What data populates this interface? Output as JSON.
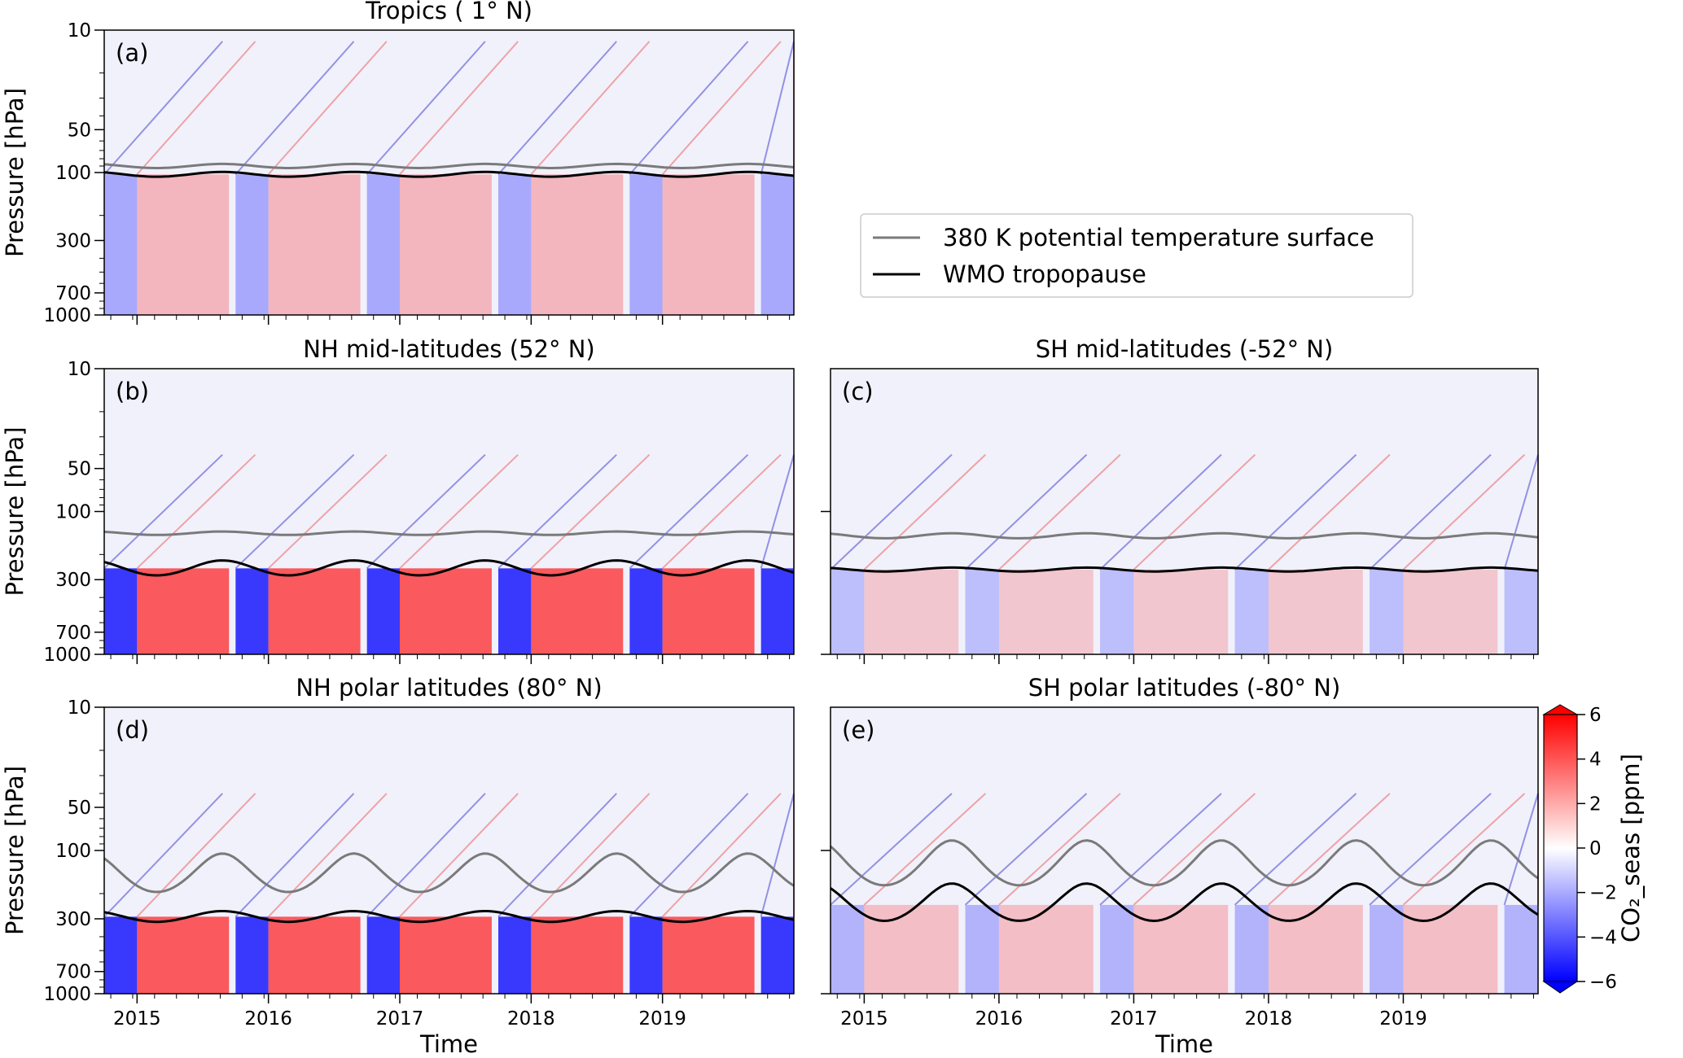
{
  "figure": {
    "xlabel": "Time",
    "ylabel": "Pressure [hPa]",
    "colorbar": {
      "label": "CO₂_seas [ppm]",
      "ticks": [
        "6",
        "4",
        "2",
        "0",
        "−2",
        "−4",
        "−6"
      ],
      "range": [
        -6,
        6
      ],
      "extend": "both",
      "colors": {
        "low": "#0000ff",
        "mid": "#ffffff",
        "high": "#ff0000"
      }
    },
    "legend": {
      "placement": "right of panel (a)",
      "entries": [
        {
          "label": "380 K potential temperature surface",
          "color": "#7a7a7a"
        },
        {
          "label": "WMO tropopause",
          "color": "#000000"
        }
      ]
    }
  },
  "chart_data": [
    {
      "type": "heatmap",
      "panel": "(a)",
      "title": "Tropics ( 1° N)",
      "xlabel": "",
      "ylabel": "Pressure [hPa]",
      "x_ticks": [
        "2015",
        "2016",
        "2017",
        "2018",
        "2019"
      ],
      "xlim": [
        2014.75,
        2020.0
      ],
      "y_ticks": [
        "10",
        "50",
        "100",
        "300",
        "700",
        "1000"
      ],
      "ylim_hPa": [
        1000,
        10
      ],
      "y_scale": "log",
      "series": [
        {
          "name": "380 K potential temperature surface",
          "mean_hPa": 90,
          "amplitude_hPa": 3
        },
        {
          "name": "WMO tropopause",
          "mean_hPa": 103,
          "amplitude_hPa": 4
        }
      ]
    },
    {
      "type": "heatmap",
      "panel": "(b)",
      "title": "NH mid-latitudes (52° N)",
      "xlabel": "",
      "ylabel": "Pressure [hPa]",
      "x_ticks": [
        "2015",
        "2016",
        "2017",
        "2018",
        "2019"
      ],
      "xlim": [
        2014.75,
        2020.0
      ],
      "y_ticks": [
        "10",
        "50",
        "100",
        "300",
        "700",
        "1000"
      ],
      "ylim_hPa": [
        1000,
        10
      ],
      "y_scale": "log",
      "series": [
        {
          "name": "380 K potential temperature surface",
          "mean_hPa": 142,
          "amplitude_hPa": 4
        },
        {
          "name": "WMO tropopause",
          "mean_hPa": 250,
          "amplitude_hPa": 30
        }
      ]
    },
    {
      "type": "heatmap",
      "panel": "(c)",
      "title": "SH mid-latitudes (-52° N)",
      "xlabel": "",
      "ylabel": "",
      "x_ticks": [
        "2015",
        "2016",
        "2017",
        "2018",
        "2019"
      ],
      "xlim": [
        2014.75,
        2020.0
      ],
      "ylim_hPa": [
        1000,
        10
      ],
      "y_scale": "log",
      "series": [
        {
          "name": "380 K potential temperature surface",
          "mean_hPa": 148,
          "amplitude_hPa": 6
        },
        {
          "name": "WMO tropopause",
          "mean_hPa": 255,
          "amplitude_hPa": 8
        }
      ]
    },
    {
      "type": "heatmap",
      "panel": "(d)",
      "title": "NH  polar latitudes (80° N)",
      "xlabel": "Time",
      "ylabel": "Pressure [hPa]",
      "x_ticks": [
        "2015",
        "2016",
        "2017",
        "2018",
        "2019"
      ],
      "xlim": [
        2014.75,
        2020.0
      ],
      "y_ticks": [
        "10",
        "50",
        "100",
        "300",
        "700",
        "1000"
      ],
      "ylim_hPa": [
        1000,
        10
      ],
      "y_scale": "log",
      "series": [
        {
          "name": "380 K potential temperature surface",
          "mean_hPa": 150,
          "amplitude_hPa": 45
        },
        {
          "name": "WMO tropopause",
          "mean_hPa": 290,
          "amplitude_hPa": 25
        }
      ]
    },
    {
      "type": "heatmap",
      "panel": "(e)",
      "title": "SH polar latitudes (-80° N)",
      "xlabel": "Time",
      "ylabel": "",
      "x_ticks": [
        "2015",
        "2016",
        "2017",
        "2018",
        "2019"
      ],
      "xlim": [
        2014.75,
        2020.0
      ],
      "ylim_hPa": [
        1000,
        10
      ],
      "y_scale": "log",
      "series": [
        {
          "name": "380 K potential temperature surface",
          "mean_hPa": 130,
          "amplitude_hPa": 45
        },
        {
          "name": "WMO tropopause",
          "mean_hPa": 240,
          "amplitude_hPa": 70
        }
      ]
    }
  ]
}
